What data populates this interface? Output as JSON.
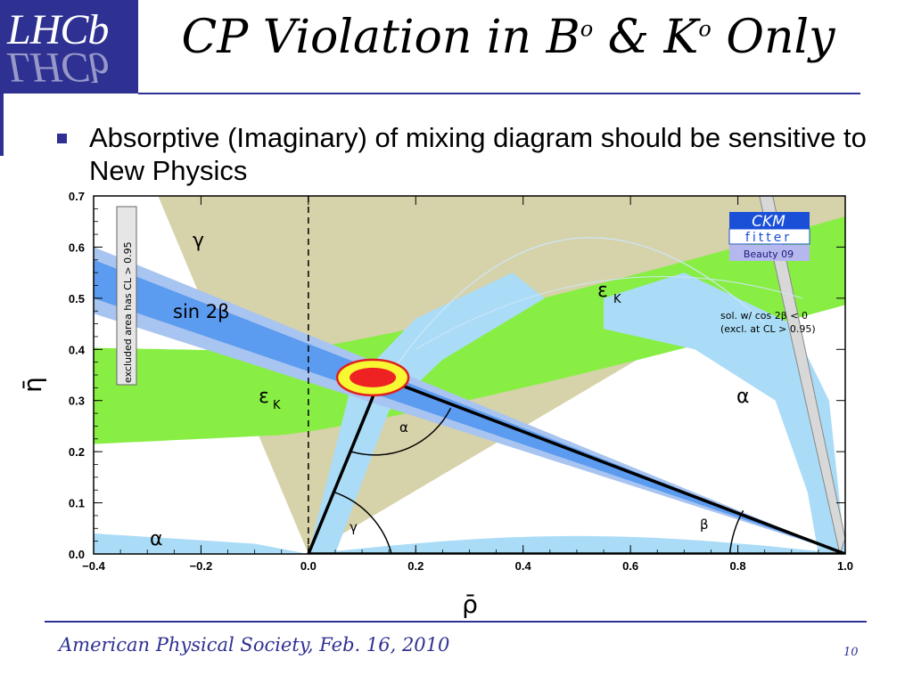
{
  "slide": {
    "logo_text": "LHCb",
    "title_main": "CP Violation in B",
    "title_sup1": "o",
    "title_mid": " & K",
    "title_sup2": "o",
    "title_end": " Only",
    "bullet": "Absorptive (Imaginary) of mixing diagram should be sensitive to New Physics",
    "footer": "American Physical Society, Feb. 16, 2010",
    "page_number": "10"
  },
  "colors": {
    "brand": "#2e3192",
    "epsK_band": "#88ee44",
    "sin2beta_band": "#5b9bf0",
    "sin2beta_outer": "#a8c4f0",
    "alpha_band": "#aadcf7",
    "gamma_band": "#d6d2aa",
    "cos2beta_band": "#d8d8d8",
    "vub_ellipse_outer": "#f7f732",
    "vub_ellipse_inner": "#ee2222"
  },
  "chart_data": {
    "type": "scatter",
    "xlabel": "ρ̄",
    "ylabel": "η̄",
    "xlim": [
      -0.4,
      1.0
    ],
    "ylim": [
      0.0,
      0.7
    ],
    "x_ticks": [
      "−0.4",
      "−0.2",
      "0.0",
      "0.2",
      "0.4",
      "0.6",
      "0.8",
      "1.0"
    ],
    "y_ticks": [
      "0.0",
      "0.1",
      "0.2",
      "0.3",
      "0.4",
      "0.5",
      "0.6",
      "0.7"
    ],
    "x_tick_values": [
      -0.4,
      -0.2,
      0.0,
      0.2,
      0.4,
      0.6,
      0.8,
      1.0
    ],
    "y_tick_values": [
      0.0,
      0.1,
      0.2,
      0.3,
      0.4,
      0.5,
      0.6,
      0.7
    ],
    "triangle_apex": {
      "rho": 0.135,
      "eta": 0.345
    },
    "triangle_base": [
      {
        "rho": 0.0,
        "eta": 0.0
      },
      {
        "rho": 1.0,
        "eta": 0.0
      }
    ],
    "legend": {
      "title": "CKM",
      "subtitle": "fitter",
      "conference": "Beauty 09"
    },
    "annotations": {
      "excluded": "excluded area has CL > 0.95",
      "gamma_top": "γ",
      "sin2beta": "sin 2β",
      "epsK_top": "ε",
      "epsK_top_sub": "K",
      "epsK_left": "ε",
      "epsK_left_sub": "K",
      "alpha_right": "α",
      "alpha_bottom": "α",
      "cos_note_1": "sol. w/ cos 2β < 0",
      "cos_note_2": "(excl. at CL > 0.95)",
      "angle_alpha": "α",
      "angle_gamma": "γ",
      "angle_beta": "β"
    }
  }
}
